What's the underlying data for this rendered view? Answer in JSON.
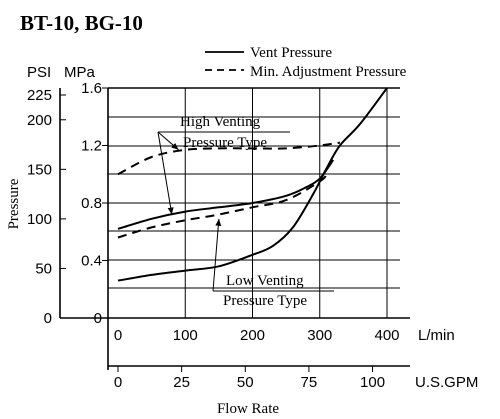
{
  "chart_data": {
    "type": "line",
    "title": "BT-10, BG-10",
    "ylabel": "Pressure",
    "xlabel": "Flow Rate",
    "left_axis_psi": {
      "unit": "PSI",
      "ticks": [
        {
          "value": 0,
          "label": "0"
        },
        {
          "value": 50,
          "label": "50"
        },
        {
          "value": 100,
          "label": "100"
        },
        {
          "value": 150,
          "label": "150"
        },
        {
          "value": 200,
          "label": "200"
        },
        {
          "value": 225,
          "label": "225"
        }
      ]
    },
    "left_axis_mpa": {
      "unit": "MPa",
      "ticks": [
        {
          "value": 0,
          "label": "0"
        },
        {
          "value": 0.4,
          "label": "0.4"
        },
        {
          "value": 0.8,
          "label": "0.8"
        },
        {
          "value": 1.2,
          "label": "1.2"
        },
        {
          "value": 1.6,
          "label": "1.6"
        }
      ]
    },
    "x_axis_lmin": {
      "unit": "L/min",
      "ticks": [
        {
          "value": 0,
          "label": "0"
        },
        {
          "value": 100,
          "label": "100"
        },
        {
          "value": 200,
          "label": "200"
        },
        {
          "value": 300,
          "label": "300"
        },
        {
          "value": 400,
          "label": "400"
        }
      ]
    },
    "x_axis_gpm": {
      "unit": "U.S.GPM",
      "ticks": [
        {
          "value": 0,
          "label": "0"
        },
        {
          "value": 25,
          "label": "25"
        },
        {
          "value": 50,
          "label": "50"
        },
        {
          "value": 75,
          "label": "75"
        },
        {
          "value": 100,
          "label": "100"
        }
      ]
    },
    "xlim": [
      0,
      400
    ],
    "ylim_mpa": [
      0,
      1.6
    ],
    "grid": true,
    "legend_position": "top-right",
    "legend": [
      {
        "label": "Vent Pressure",
        "style": "solid"
      },
      {
        "label": "Min. Adjustment Pressure",
        "style": "dashed"
      }
    ],
    "series": [
      {
        "name": "Vent Pressure",
        "style": "solid",
        "group": "High Venting Pressure Type",
        "x": [
          0,
          50,
          100,
          150,
          200,
          250,
          280,
          300,
          320
        ],
        "y": [
          0.62,
          0.69,
          0.74,
          0.77,
          0.8,
          0.85,
          0.91,
          0.97,
          1.1
        ]
      },
      {
        "name": "Min. Adjustment Pressure",
        "style": "dashed",
        "group": "High Venting Pressure Type",
        "x": [
          0,
          50,
          100,
          150,
          200,
          250,
          300,
          330
        ],
        "y": [
          1.0,
          1.12,
          1.17,
          1.18,
          1.18,
          1.18,
          1.2,
          1.22
        ]
      },
      {
        "name": "Min. Adjustment Pressure",
        "style": "dashed",
        "group": "Low Venting Pressure Type",
        "x": [
          0,
          50,
          100,
          150,
          200,
          250,
          300,
          310
        ],
        "y": [
          0.56,
          0.63,
          0.68,
          0.72,
          0.77,
          0.82,
          0.95,
          1.0
        ]
      },
      {
        "name": "Vent Pressure",
        "style": "solid",
        "group": "Low Venting Pressure Type",
        "x": [
          0,
          50,
          100,
          150,
          200,
          230,
          260,
          290,
          310,
          330,
          360,
          400
        ],
        "y": [
          0.26,
          0.3,
          0.33,
          0.36,
          0.44,
          0.5,
          0.63,
          0.86,
          1.04,
          1.2,
          1.35,
          1.6
        ]
      }
    ],
    "annotations": [
      {
        "lines": [
          "High Venting",
          "Pressure Type"
        ],
        "points_to": "upper curves",
        "arrows": [
          {
            "x": 90,
            "y": 1.17
          },
          {
            "x": 80,
            "y": 0.72
          }
        ]
      },
      {
        "lines": [
          "Low Venting",
          "Pressure Type"
        ],
        "points_to": "lower curves",
        "arrows": [
          {
            "x": 150,
            "y": 0.69
          }
        ]
      }
    ]
  }
}
